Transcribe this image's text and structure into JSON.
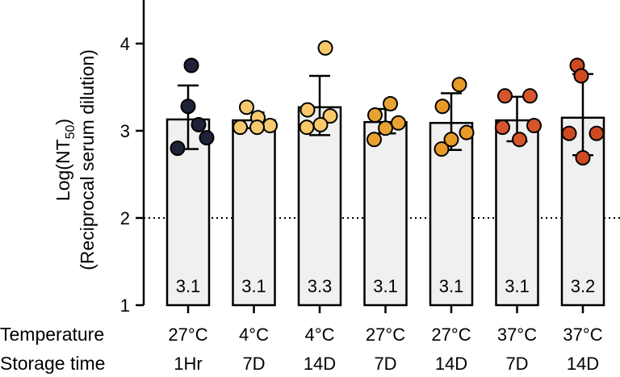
{
  "chart_data": {
    "type": "bar",
    "ylabel_line1": "Log(NT",
    "ylabel_sub": "50",
    "ylabel_line1_end": ")",
    "ylabel_line2": "(Reciprocal serum dilution)",
    "ylim": [
      1,
      4.5
    ],
    "yticks": [
      "1",
      "2",
      "3",
      "4"
    ],
    "reference_line": 2,
    "row_labels": [
      "Temperature",
      "Storage time"
    ],
    "temperature": [
      "27°C",
      "4°C",
      "4°C",
      "27°C",
      "27°C",
      "37°C",
      "37°C"
    ],
    "storage_time": [
      "1Hr",
      "7D",
      "14D",
      "7D",
      "14D",
      "7D",
      "14D"
    ],
    "bar_labels": [
      "3.1",
      "3.1",
      "3.3",
      "3.1",
      "3.1",
      "3.1",
      "3.2"
    ],
    "bars": [
      3.13,
      3.12,
      3.27,
      3.1,
      3.09,
      3.12,
      3.15
    ],
    "err_low": [
      2.79,
      3.03,
      2.95,
      2.97,
      2.78,
      2.88,
      2.72
    ],
    "err_high": [
      3.52,
      3.21,
      3.63,
      3.25,
      3.43,
      3.39,
      3.65
    ],
    "points": [
      [
        3.75,
        3.28,
        3.07,
        2.92,
        2.8
      ],
      [
        3.27,
        3.15,
        3.06,
        3.04,
        3.04
      ],
      [
        3.95,
        3.24,
        3.17,
        3.07,
        3.04
      ],
      [
        3.31,
        3.18,
        3.09,
        3.03,
        2.9
      ],
      [
        3.53,
        3.28,
        2.98,
        2.9,
        2.79
      ],
      [
        3.4,
        3.4,
        3.06,
        3.04,
        2.9
      ],
      [
        3.75,
        3.63,
        2.97,
        2.97,
        2.69
      ]
    ],
    "colors": [
      "#1f2238",
      "#f6c96e",
      "#f8c86a",
      "#e8a232",
      "#e79a27",
      "#d7552a",
      "#ce4a21"
    ],
    "bar_fill": "#f0f0f0"
  }
}
